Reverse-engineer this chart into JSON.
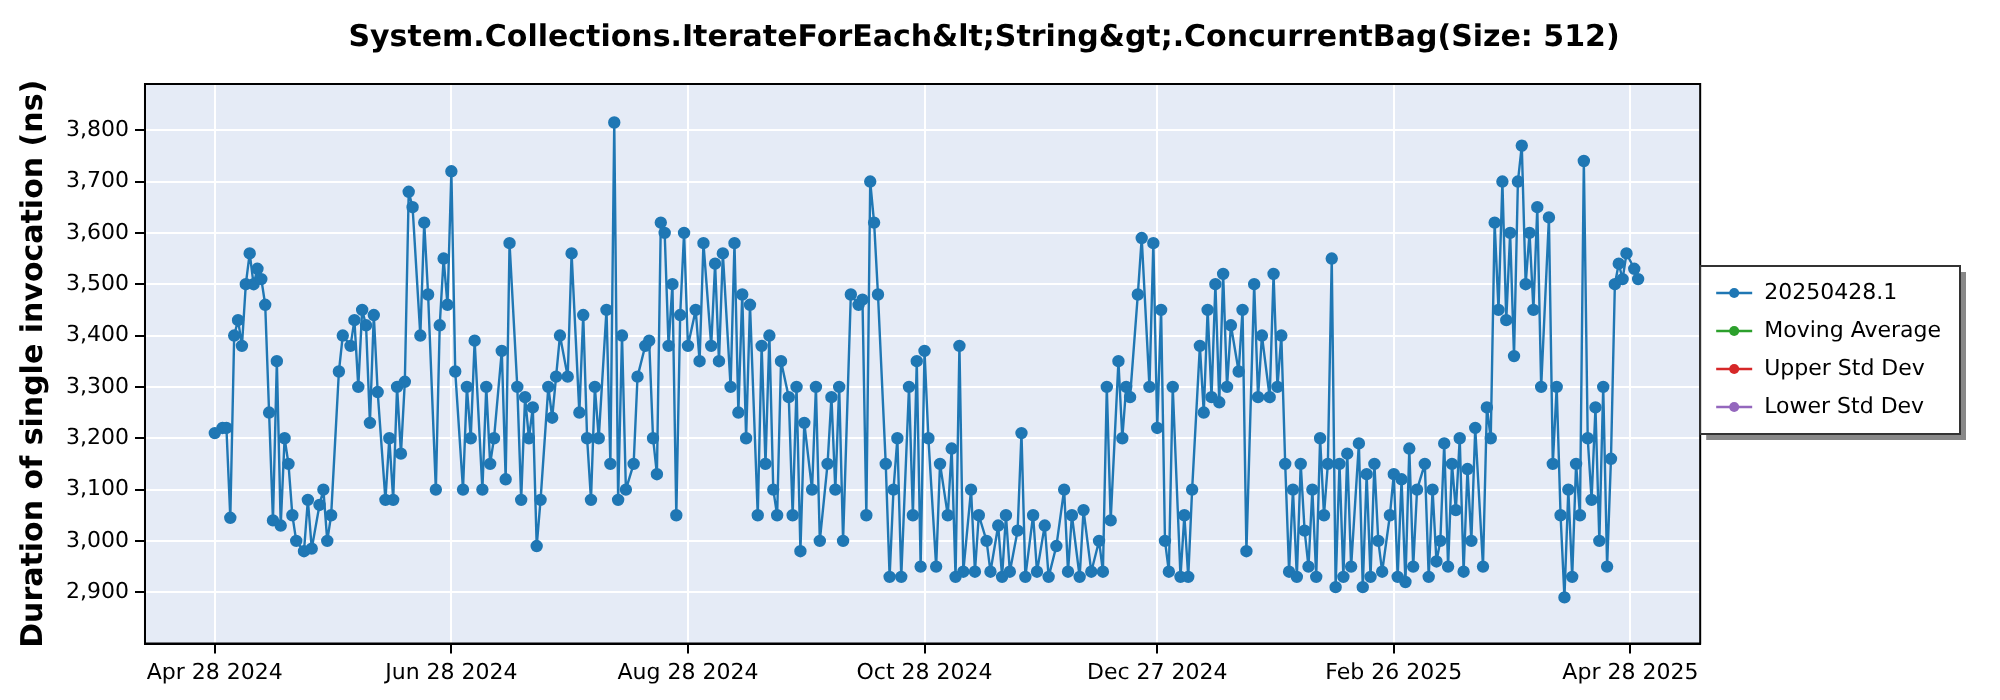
{
  "chart_data": {
    "type": "line",
    "title": "System.Collections.IterateForEach&lt;String&gt;.ConcurrentBag(Size: 512)",
    "ylabel": "Duration of single invocation (ns)",
    "xlim": [
      "2024-04-10",
      "2025-05-16"
    ],
    "xticks": [
      {
        "value": "2024-04-28",
        "label": "Apr 28 2024"
      },
      {
        "value": "2024-06-28",
        "label": "Jun 28 2024"
      },
      {
        "value": "2024-08-28",
        "label": "Aug 28 2024"
      },
      {
        "value": "2024-10-28",
        "label": "Oct 28 2024"
      },
      {
        "value": "2024-12-27",
        "label": "Dec 27 2024"
      },
      {
        "value": "2025-02-26",
        "label": "Feb 26 2025"
      },
      {
        "value": "2025-04-28",
        "label": "Apr 28 2025"
      }
    ],
    "ylim": [
      2800,
      3890
    ],
    "yticks": [
      {
        "value": 2900,
        "label": "2,900"
      },
      {
        "value": 3000,
        "label": "3,000"
      },
      {
        "value": 3100,
        "label": "3,100"
      },
      {
        "value": 3200,
        "label": "3,200"
      },
      {
        "value": 3300,
        "label": "3,300"
      },
      {
        "value": 3400,
        "label": "3,400"
      },
      {
        "value": 3500,
        "label": "3,500"
      },
      {
        "value": 3600,
        "label": "3,600"
      },
      {
        "value": 3700,
        "label": "3,700"
      },
      {
        "value": 3800,
        "label": "3,800"
      }
    ],
    "grid": true,
    "legend": "right",
    "marker": "circle",
    "line_style": "solid",
    "series": [
      {
        "name": "20250428.1",
        "color": "#1f77b4",
        "x": [
          "2024-04-28",
          "2024-04-30",
          "2024-05-01",
          "2024-05-02",
          "2024-05-03",
          "2024-05-04",
          "2024-05-05",
          "2024-05-06",
          "2024-05-07",
          "2024-05-08",
          "2024-05-09",
          "2024-05-10",
          "2024-05-11",
          "2024-05-12",
          "2024-05-13",
          "2024-05-14",
          "2024-05-15",
          "2024-05-16",
          "2024-05-17",
          "2024-05-18",
          "2024-05-19",
          "2024-05-21",
          "2024-05-22",
          "2024-05-23",
          "2024-05-25",
          "2024-05-26",
          "2024-05-27",
          "2024-05-28",
          "2024-05-30",
          "2024-05-31",
          "2024-06-02",
          "2024-06-03",
          "2024-06-04",
          "2024-06-05",
          "2024-06-06",
          "2024-06-07",
          "2024-06-08",
          "2024-06-09",
          "2024-06-11",
          "2024-06-12",
          "2024-06-13",
          "2024-06-14",
          "2024-06-15",
          "2024-06-16",
          "2024-06-17",
          "2024-06-18",
          "2024-06-20",
          "2024-06-21",
          "2024-06-22",
          "2024-06-24",
          "2024-06-25",
          "2024-06-26",
          "2024-06-27",
          "2024-06-28",
          "2024-06-29",
          "2024-07-01",
          "2024-07-02",
          "2024-07-03",
          "2024-07-04",
          "2024-07-06",
          "2024-07-07",
          "2024-07-08",
          "2024-07-09",
          "2024-07-11",
          "2024-07-12",
          "2024-07-13",
          "2024-07-15",
          "2024-07-16",
          "2024-07-17",
          "2024-07-18",
          "2024-07-19",
          "2024-07-20",
          "2024-07-21",
          "2024-07-23",
          "2024-07-24",
          "2024-07-25",
          "2024-07-26",
          "2024-07-28",
          "2024-07-29",
          "2024-07-31",
          "2024-08-01",
          "2024-08-02",
          "2024-08-03",
          "2024-08-04",
          "2024-08-05",
          "2024-08-07",
          "2024-08-08",
          "2024-08-09",
          "2024-08-10",
          "2024-08-11",
          "2024-08-12",
          "2024-08-14",
          "2024-08-15",
          "2024-08-17",
          "2024-08-18",
          "2024-08-19",
          "2024-08-20",
          "2024-08-21",
          "2024-08-22",
          "2024-08-23",
          "2024-08-24",
          "2024-08-25",
          "2024-08-26",
          "2024-08-27",
          "2024-08-28",
          "2024-08-30",
          "2024-08-31",
          "2024-09-01",
          "2024-09-03",
          "2024-09-04",
          "2024-09-05",
          "2024-09-06",
          "2024-09-08",
          "2024-09-09",
          "2024-09-10",
          "2024-09-11",
          "2024-09-12",
          "2024-09-13",
          "2024-09-15",
          "2024-09-16",
          "2024-09-17",
          "2024-09-18",
          "2024-09-19",
          "2024-09-20",
          "2024-09-21",
          "2024-09-23",
          "2024-09-24",
          "2024-09-25",
          "2024-09-26",
          "2024-09-27",
          "2024-09-29",
          "2024-09-30",
          "2024-10-01",
          "2024-10-03",
          "2024-10-04",
          "2024-10-05",
          "2024-10-06",
          "2024-10-07",
          "2024-10-09",
          "2024-10-11",
          "2024-10-12",
          "2024-10-13",
          "2024-10-14",
          "2024-10-15",
          "2024-10-16",
          "2024-10-18",
          "2024-10-19",
          "2024-10-20",
          "2024-10-21",
          "2024-10-22",
          "2024-10-24",
          "2024-10-25",
          "2024-10-26",
          "2024-10-27",
          "2024-10-28",
          "2024-10-29",
          "2024-10-31",
          "2024-11-01",
          "2024-11-03",
          "2024-11-04",
          "2024-11-05",
          "2024-11-06",
          "2024-11-07",
          "2024-11-09",
          "2024-11-10",
          "2024-11-11",
          "2024-11-13",
          "2024-11-14",
          "2024-11-16",
          "2024-11-17",
          "2024-11-18",
          "2024-11-19",
          "2024-11-21",
          "2024-11-22",
          "2024-11-23",
          "2024-11-25",
          "2024-11-26",
          "2024-11-28",
          "2024-11-29",
          "2024-12-01",
          "2024-12-03",
          "2024-12-04",
          "2024-12-05",
          "2024-12-07",
          "2024-12-08",
          "2024-12-10",
          "2024-12-12",
          "2024-12-13",
          "2024-12-14",
          "2024-12-15",
          "2024-12-17",
          "2024-12-18",
          "2024-12-19",
          "2024-12-20",
          "2024-12-22",
          "2024-12-23",
          "2024-12-25",
          "2024-12-26",
          "2024-12-27",
          "2024-12-28",
          "2024-12-29",
          "2024-12-30",
          "2024-12-31",
          "2025-01-02",
          "2025-01-03",
          "2025-01-04",
          "2025-01-05",
          "2025-01-07",
          "2025-01-08",
          "2025-01-09",
          "2025-01-10",
          "2025-01-11",
          "2025-01-12",
          "2025-01-13",
          "2025-01-14",
          "2025-01-15",
          "2025-01-17",
          "2025-01-18",
          "2025-01-19",
          "2025-01-21",
          "2025-01-22",
          "2025-01-23",
          "2025-01-25",
          "2025-01-26",
          "2025-01-27",
          "2025-01-28",
          "2025-01-29",
          "2025-01-30",
          "2025-01-31",
          "2025-02-01",
          "2025-02-02",
          "2025-02-03",
          "2025-02-04",
          "2025-02-05",
          "2025-02-06",
          "2025-02-07",
          "2025-02-08",
          "2025-02-09",
          "2025-02-10",
          "2025-02-11",
          "2025-02-12",
          "2025-02-13",
          "2025-02-14",
          "2025-02-15",
          "2025-02-17",
          "2025-02-18",
          "2025-02-19",
          "2025-02-20",
          "2025-02-21",
          "2025-02-22",
          "2025-02-23",
          "2025-02-25",
          "2025-02-26",
          "2025-02-27",
          "2025-02-28",
          "2025-03-01",
          "2025-03-02",
          "2025-03-03",
          "2025-03-04",
          "2025-03-06",
          "2025-03-07",
          "2025-03-08",
          "2025-03-09",
          "2025-03-10",
          "2025-03-11",
          "2025-03-12",
          "2025-03-13",
          "2025-03-14",
          "2025-03-15",
          "2025-03-16",
          "2025-03-17",
          "2025-03-18",
          "2025-03-19",
          "2025-03-21",
          "2025-03-22",
          "2025-03-23",
          "2025-03-24",
          "2025-03-25",
          "2025-03-26",
          "2025-03-27",
          "2025-03-28",
          "2025-03-29",
          "2025-03-30",
          "2025-03-31",
          "2025-04-01",
          "2025-04-02",
          "2025-04-03",
          "2025-04-04",
          "2025-04-05",
          "2025-04-07",
          "2025-04-08",
          "2025-04-09",
          "2025-04-10",
          "2025-04-11",
          "2025-04-12",
          "2025-04-13",
          "2025-04-14",
          "2025-04-15",
          "2025-04-16",
          "2025-04-17",
          "2025-04-18",
          "2025-04-19",
          "2025-04-20",
          "2025-04-21",
          "2025-04-22",
          "2025-04-23",
          "2025-04-24",
          "2025-04-25",
          "2025-04-26",
          "2025-04-27",
          "2025-04-29",
          "2025-04-30"
        ],
        "values": [
          3210,
          3220,
          3220,
          3045,
          3400,
          3430,
          3380,
          3500,
          3560,
          3500,
          3530,
          3510,
          3460,
          3250,
          3040,
          3350,
          3030,
          3200,
          3150,
          3050,
          3000,
          2980,
          3080,
          2985,
          3070,
          3100,
          3000,
          3050,
          3330,
          3400,
          3380,
          3430,
          3300,
          3450,
          3420,
          3230,
          3440,
          3290,
          3080,
          3200,
          3080,
          3300,
          3170,
          3310,
          3680,
          3650,
          3400,
          3620,
          3480,
          3100,
          3420,
          3550,
          3460,
          3720,
          3330,
          3100,
          3300,
          3200,
          3390,
          3100,
          3300,
          3150,
          3200,
          3370,
          3120,
          3580,
          3300,
          3080,
          3280,
          3200,
          3260,
          2990,
          3080,
          3300,
          3240,
          3320,
          3400,
          3320,
          3560,
          3250,
          3440,
          3200,
          3080,
          3300,
          3200,
          3450,
          3150,
          3815,
          3080,
          3400,
          3100,
          3150,
          3320,
          3380,
          3390,
          3200,
          3130,
          3620,
          3600,
          3380,
          3500,
          3050,
          3440,
          3600,
          3380,
          3450,
          3350,
          3580,
          3380,
          3540,
          3350,
          3560,
          3300,
          3580,
          3250,
          3480,
          3200,
          3460,
          3050,
          3380,
          3150,
          3400,
          3100,
          3050,
          3350,
          3280,
          3050,
          3300,
          2980,
          3230,
          3100,
          3300,
          3000,
          3150,
          3280,
          3100,
          3300,
          3000,
          3480,
          3460,
          3470,
          3050,
          3700,
          3620,
          3480,
          3150,
          2930,
          3100,
          3200,
          2930,
          3300,
          3050,
          3350,
          2950,
          3370,
          3200,
          2950,
          3150,
          3050,
          3180,
          2930,
          3380,
          2940,
          3100,
          2940,
          3050,
          3000,
          2940,
          3030,
          2930,
          3050,
          2940,
          3020,
          3210,
          2930,
          3050,
          2940,
          3030,
          2930,
          2990,
          3100,
          2940,
          3050,
          2930,
          3060,
          2940,
          3000,
          2940,
          3300,
          3040,
          3350,
          3200,
          3300,
          3280,
          3480,
          3590,
          3300,
          3580,
          3220,
          3450,
          3000,
          2940,
          3300,
          2930,
          3050,
          2930,
          3100,
          3380,
          3250,
          3450,
          3280,
          3500,
          3270,
          3520,
          3300,
          3420,
          3330,
          3450,
          2980,
          3500,
          3280,
          3400,
          3280,
          3520,
          3300,
          3400,
          3150,
          2940,
          3100,
          2930,
          3150,
          3020,
          2950,
          3100,
          2930,
          3200,
          3050,
          3150,
          3550,
          2910,
          3150,
          2930,
          3170,
          2950,
          3190,
          2910,
          3130,
          2930,
          3150,
          3000,
          2940,
          3050,
          3130,
          2930,
          3120,
          2920,
          3180,
          2950,
          3100,
          3150,
          2930,
          3100,
          2960,
          3000,
          3190,
          2950,
          3150,
          3060,
          3200,
          2940,
          3140,
          3000,
          3220,
          2950,
          3260,
          3200,
          3620,
          3450,
          3700,
          3430,
          3600,
          3360,
          3700,
          3770,
          3500,
          3600,
          3450,
          3650,
          3300,
          3630,
          3150,
          3300,
          3050,
          2890,
          3100,
          2930,
          3150,
          3050,
          3740,
          3200,
          3080,
          3260,
          3000,
          3300,
          2950,
          3160,
          3500,
          3540,
          3510,
          3560,
          3530,
          3510
        ]
      },
      {
        "name": "Moving Average",
        "color": "#2ca02c"
      },
      {
        "name": "Upper Std Dev",
        "color": "#d62728"
      },
      {
        "name": "Lower Std Dev",
        "color": "#9467bd"
      }
    ]
  }
}
